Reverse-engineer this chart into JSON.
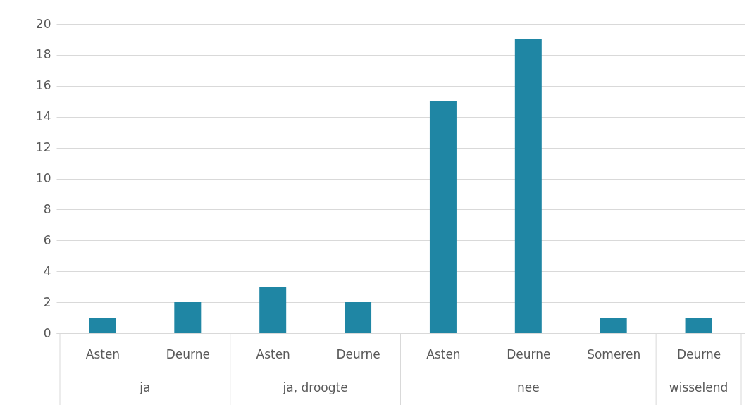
{
  "chart_data": {
    "type": "bar",
    "categories": [
      "Asten",
      "Deurne",
      "Asten",
      "Deurne",
      "Asten",
      "Deurne",
      "Someren",
      "Deurne"
    ],
    "values": [
      1,
      2,
      3,
      2,
      15,
      19,
      1,
      1
    ],
    "color": "#1f86a4",
    "ylim": [
      0,
      20
    ],
    "yticks": [
      0,
      2,
      4,
      6,
      8,
      10,
      12,
      14,
      16,
      18,
      20
    ],
    "grid": "y",
    "annotations": [
      "ja",
      "ja, droogte",
      "nee",
      "wisselend"
    ]
  }
}
